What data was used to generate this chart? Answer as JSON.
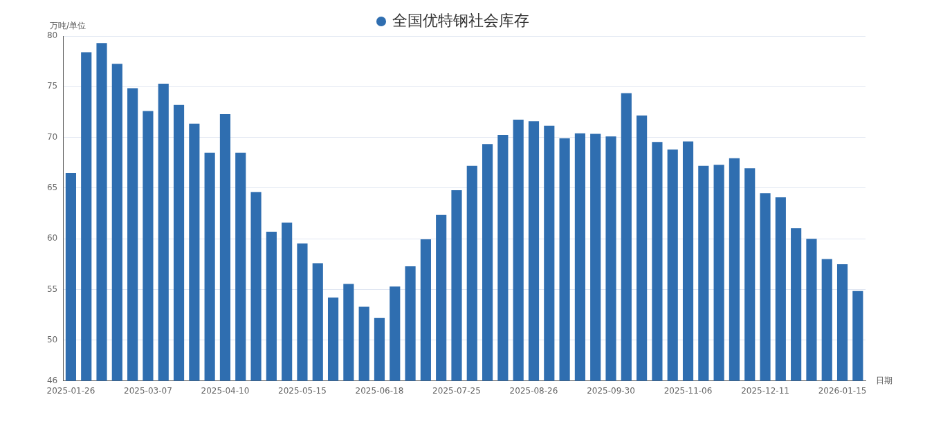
{
  "chart_data": {
    "type": "bar",
    "ylabel": "万吨/单位",
    "xlabel": "日期",
    "categories": [
      "2025-01-26",
      null,
      null,
      null,
      null,
      "2025-03-07",
      null,
      null,
      null,
      null,
      "2025-04-10",
      null,
      null,
      null,
      null,
      "2025-05-15",
      null,
      null,
      null,
      null,
      "2025-06-18",
      null,
      null,
      null,
      null,
      "2025-07-25",
      null,
      null,
      null,
      null,
      "2025-08-26",
      null,
      null,
      null,
      null,
      "2025-09-30",
      null,
      null,
      null,
      null,
      "2025-11-06",
      null,
      null,
      null,
      null,
      "2025-12-11",
      null,
      null,
      null,
      null,
      "2026-01-15",
      null
    ],
    "series": [
      {
        "name": "全国优特钢社会库存",
        "color": "#2f6eb0",
        "values": [
          66.5,
          78.4,
          79.3,
          77.25,
          74.85,
          72.6,
          75.3,
          73.2,
          71.35,
          68.5,
          72.3,
          68.5,
          64.6,
          60.7,
          61.6,
          59.55,
          57.6,
          54.2,
          55.55,
          53.3,
          52.2,
          55.3,
          57.3,
          59.95,
          62.35,
          64.8,
          67.2,
          69.35,
          70.25,
          71.75,
          71.6,
          71.15,
          69.9,
          70.4,
          70.35,
          70.1,
          74.35,
          72.15,
          69.55,
          68.8,
          69.6,
          67.2,
          67.3,
          67.95,
          66.95,
          64.5,
          64.1,
          61.05,
          60.0,
          58.0,
          57.5,
          54.85
        ]
      }
    ],
    "ylim": [
      46,
      80
    ],
    "yticks": [
      46,
      50,
      55,
      60,
      65,
      70,
      75,
      80
    ],
    "grid": "y",
    "legend": "top"
  }
}
